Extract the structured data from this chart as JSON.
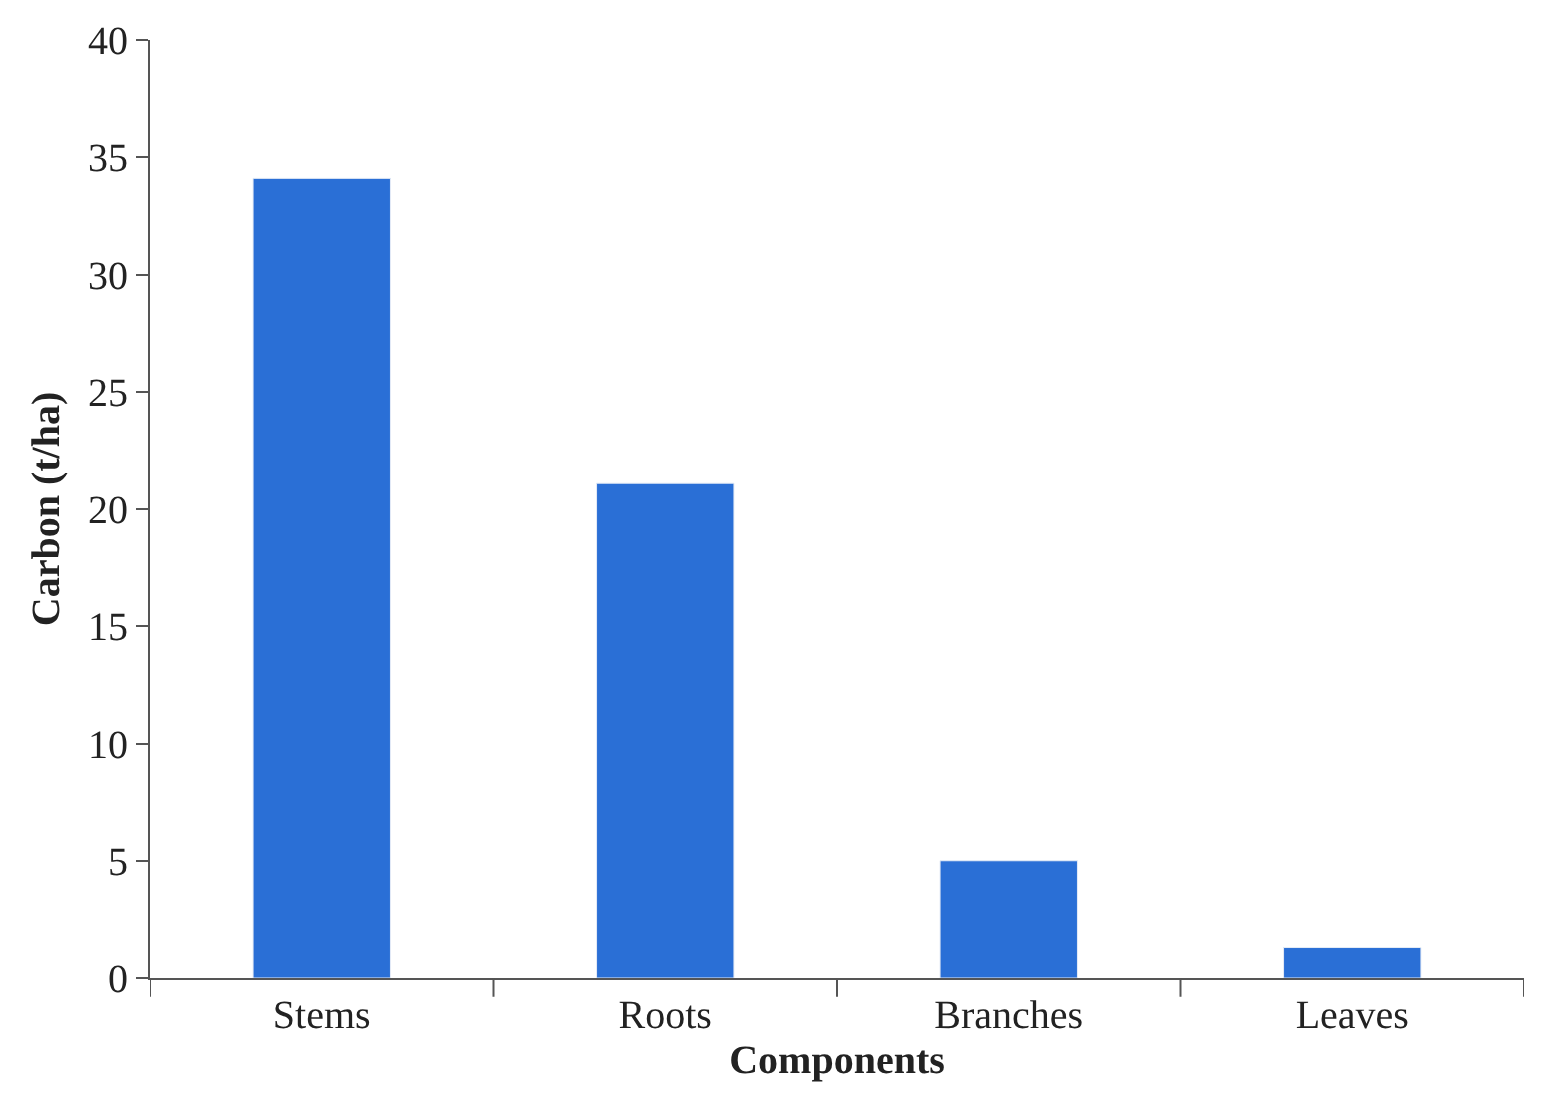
{
  "chart_data": {
    "type": "bar",
    "xlabel": "Components",
    "ylabel": "Carbon (t/ha)",
    "categories": [
      "Stems",
      "Roots",
      "Branches",
      "Leaves"
    ],
    "values": [
      34.1,
      21.1,
      5.0,
      1.3
    ],
    "color": "#2a6fd6",
    "ylim": [
      0,
      40
    ],
    "yticks": [
      0,
      5,
      10,
      15,
      20,
      25,
      30,
      35,
      40
    ]
  }
}
